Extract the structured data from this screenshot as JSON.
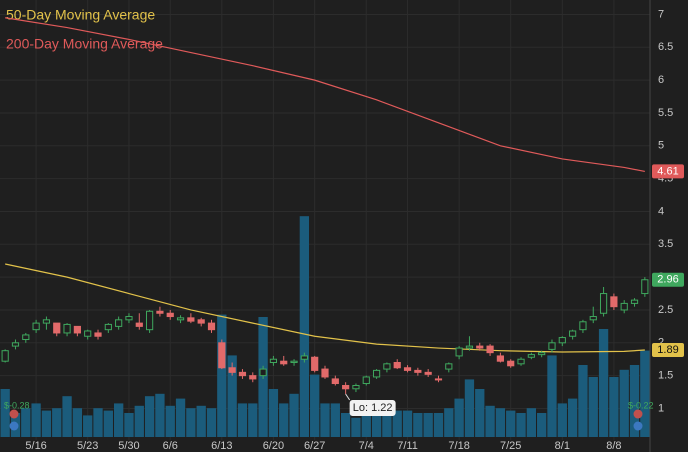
{
  "chart_data": {
    "type": "candlestick",
    "categories": [
      null,
      null,
      null,
      "5/16",
      null,
      null,
      null,
      null,
      "5/23",
      null,
      null,
      null,
      "5/30",
      null,
      null,
      null,
      "6/6",
      null,
      null,
      null,
      null,
      "6/13",
      null,
      null,
      null,
      null,
      "6/20",
      null,
      null,
      null,
      "6/27",
      null,
      null,
      null,
      null,
      "7/4",
      null,
      null,
      null,
      "7/11",
      null,
      null,
      null,
      null,
      "7/18",
      null,
      null,
      null,
      null,
      "7/25",
      null,
      null,
      null,
      null,
      "8/1",
      null,
      null,
      null,
      null,
      "8/8",
      null,
      null,
      null
    ],
    "open": [
      1.72,
      1.95,
      2.05,
      2.2,
      2.3,
      2.3,
      2.15,
      2.25,
      2.1,
      2.15,
      2.2,
      2.25,
      2.35,
      2.3,
      2.2,
      2.48,
      2.45,
      2.35,
      2.38,
      2.35,
      2.3,
      2.0,
      1.62,
      1.55,
      1.5,
      1.5,
      1.7,
      1.72,
      1.7,
      1.75,
      1.78,
      1.6,
      1.45,
      1.35,
      1.3,
      1.38,
      1.48,
      1.6,
      1.7,
      1.62,
      1.58,
      1.55,
      1.45,
      1.6,
      1.8,
      1.92,
      1.95,
      1.95,
      1.8,
      1.72,
      1.68,
      1.78,
      1.82,
      1.9,
      2.0,
      2.1,
      2.2,
      2.35,
      2.45,
      2.7,
      2.5,
      2.6,
      2.75
    ],
    "high": [
      1.9,
      2.05,
      2.15,
      2.35,
      2.4,
      2.3,
      2.3,
      2.25,
      2.2,
      2.2,
      2.3,
      2.4,
      2.45,
      2.45,
      2.5,
      2.55,
      2.5,
      2.42,
      2.45,
      2.38,
      2.35,
      2.05,
      1.7,
      1.6,
      1.55,
      1.65,
      1.8,
      1.8,
      1.75,
      1.85,
      1.8,
      1.65,
      1.5,
      1.4,
      1.38,
      1.5,
      1.6,
      1.7,
      1.75,
      1.66,
      1.62,
      1.6,
      1.5,
      1.7,
      1.95,
      2.1,
      2.0,
      1.98,
      1.85,
      1.75,
      1.78,
      1.85,
      1.88,
      2.05,
      2.1,
      2.2,
      2.35,
      2.55,
      2.85,
      2.75,
      2.65,
      2.68,
      3.0
    ],
    "low": [
      1.7,
      1.9,
      2.0,
      2.15,
      2.2,
      2.1,
      2.1,
      2.1,
      2.05,
      2.05,
      2.15,
      2.2,
      2.3,
      2.2,
      2.15,
      2.4,
      2.35,
      2.3,
      2.3,
      2.25,
      2.15,
      1.6,
      1.5,
      1.45,
      1.4,
      1.45,
      1.65,
      1.65,
      1.65,
      1.7,
      1.55,
      1.45,
      1.35,
      1.22,
      1.25,
      1.35,
      1.45,
      1.55,
      1.6,
      1.55,
      1.5,
      1.48,
      1.4,
      1.55,
      1.75,
      1.88,
      1.88,
      1.8,
      1.7,
      1.62,
      1.65,
      1.75,
      1.78,
      1.85,
      1.95,
      2.05,
      2.15,
      2.3,
      2.4,
      2.5,
      2.45,
      2.55,
      2.7
    ],
    "close": [
      1.88,
      2.0,
      2.12,
      2.3,
      2.35,
      2.15,
      2.28,
      2.15,
      2.18,
      2.1,
      2.28,
      2.35,
      2.4,
      2.25,
      2.48,
      2.45,
      2.4,
      2.38,
      2.33,
      2.3,
      2.2,
      1.62,
      1.55,
      1.5,
      1.45,
      1.6,
      1.75,
      1.68,
      1.72,
      1.8,
      1.58,
      1.48,
      1.38,
      1.3,
      1.35,
      1.48,
      1.58,
      1.68,
      1.62,
      1.58,
      1.55,
      1.52,
      1.44,
      1.68,
      1.92,
      1.95,
      1.92,
      1.85,
      1.72,
      1.65,
      1.75,
      1.82,
      1.85,
      2.0,
      2.08,
      2.18,
      2.32,
      2.4,
      2.75,
      2.55,
      2.6,
      2.65,
      2.96
    ],
    "volume": [
      20,
      10,
      12,
      14,
      11,
      12,
      17,
      12,
      9,
      12,
      11,
      14,
      10,
      13,
      17,
      18,
      13,
      16,
      12,
      13,
      12,
      51,
      34,
      14,
      14,
      50,
      20,
      14,
      18,
      92,
      26,
      14,
      14,
      10,
      8,
      12,
      10,
      10,
      11,
      11,
      10,
      10,
      10,
      12,
      16,
      24,
      20,
      13,
      12,
      11,
      10,
      12,
      10,
      34,
      14,
      16,
      30,
      25,
      45,
      25,
      28,
      30,
      36
    ],
    "series": [
      {
        "name": "50-Day Moving Average",
        "color": "#e2c24a",
        "x": [
          0,
          6,
          12,
          18,
          24,
          30,
          36,
          42,
          48,
          54,
          60,
          62
        ],
        "values": [
          3.2,
          3.0,
          2.75,
          2.5,
          2.3,
          2.1,
          1.98,
          1.92,
          1.88,
          1.86,
          1.87,
          1.89
        ]
      },
      {
        "name": "200-Day Moving Average",
        "color": "#e05a5a",
        "x": [
          0,
          6,
          12,
          18,
          24,
          30,
          36,
          42,
          48,
          54,
          60,
          62
        ],
        "values": [
          6.95,
          6.8,
          6.62,
          6.42,
          6.22,
          6.0,
          5.7,
          5.35,
          5.0,
          4.8,
          4.67,
          4.61
        ]
      }
    ],
    "ylim": [
      0.52,
      7.22
    ],
    "yticks": [
      1,
      1.5,
      2,
      2.5,
      3,
      3.5,
      4,
      4.5,
      5,
      5.5,
      6,
      6.5,
      7
    ],
    "y2lim": [
      0,
      100
    ],
    "grid": true,
    "up_color": "#3fa85e",
    "down_color": "#e26a6a",
    "volume_color": "#1b5c7c",
    "annotations": [
      {
        "label": "Lo: 1.22"
      }
    ],
    "events": [
      {
        "label": "$-0.28"
      },
      {
        "label": "$-0.22"
      }
    ]
  }
}
